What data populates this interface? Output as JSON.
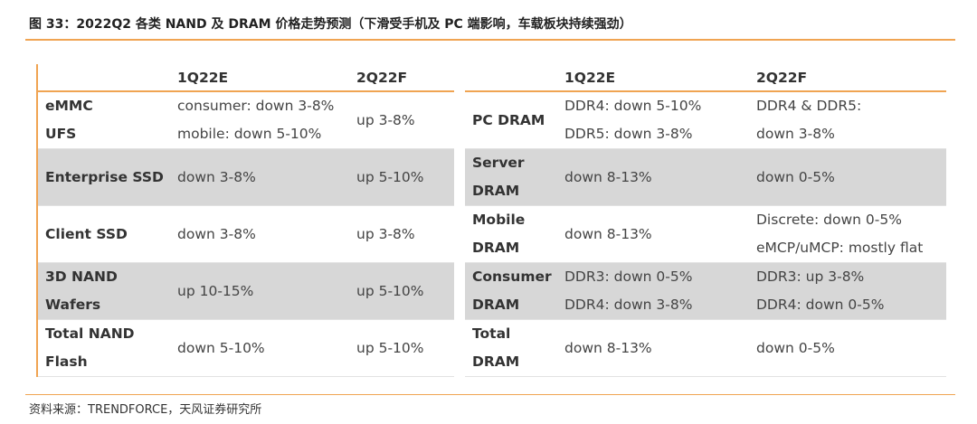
{
  "title": "图 33：2022Q2 各类 NAND 及 DRAM 价格走势预测（下滑受手机及 PC 端影响，车载板块持续强劲）",
  "source": "资料来源：TRENDFORCE，天风证券研究所",
  "left_table": {
    "headers": [
      "",
      "1Q22E",
      "2Q22F"
    ],
    "rows": [
      {
        "label": [
          "eMMC",
          "UFS"
        ],
        "q1": [
          "consumer: down 3-8%",
          "mobile: down 5-10%"
        ],
        "q2": [
          "up 3-8%"
        ],
        "shaded": false
      },
      {
        "label": [
          "Enterprise SSD"
        ],
        "q1": [
          "down 3-8%"
        ],
        "q2": [
          "up 5-10%"
        ],
        "shaded": true
      },
      {
        "label": [
          "Client SSD"
        ],
        "q1": [
          "down 3-8%"
        ],
        "q2": [
          "up 3-8%"
        ],
        "shaded": false
      },
      {
        "label": [
          "3D NAND",
          "Wafers"
        ],
        "q1": [
          "up 10-15%"
        ],
        "q2": [
          "up 5-10%"
        ],
        "shaded": true
      },
      {
        "label": [
          "Total NAND",
          "Flash"
        ],
        "q1": [
          "down 5-10%"
        ],
        "q2": [
          "up 5-10%"
        ],
        "shaded": false
      }
    ]
  },
  "right_table": {
    "headers": [
      "",
      "1Q22E",
      "2Q22F"
    ],
    "rows": [
      {
        "label": [
          "PC DRAM"
        ],
        "q1": [
          "DDR4: down 5-10%",
          "DDR5: down 3-8%"
        ],
        "q2": [
          "DDR4 & DDR5:",
          "down 3-8%"
        ],
        "shaded": false
      },
      {
        "label": [
          "Server",
          "DRAM"
        ],
        "q1": [
          "down 8-13%"
        ],
        "q2": [
          "down 0-5%"
        ],
        "shaded": true
      },
      {
        "label": [
          "Mobile",
          "DRAM"
        ],
        "q1": [
          "down 8-13%"
        ],
        "q2": [
          "Discrete: down 0-5%",
          "eMCP/uMCP: mostly flat"
        ],
        "shaded": false
      },
      {
        "label": [
          "Consumer",
          "DRAM"
        ],
        "q1": [
          "DDR3: down 0-5%",
          "DDR4: down 3-8%"
        ],
        "q2": [
          "DDR3: up 3-8%",
          "DDR4: down 0-5%"
        ],
        "shaded": true
      },
      {
        "label": [
          "Total",
          "DRAM"
        ],
        "q1": [
          "down 8-13%"
        ],
        "q2": [
          "down 0-5%"
        ],
        "shaded": false
      }
    ]
  }
}
